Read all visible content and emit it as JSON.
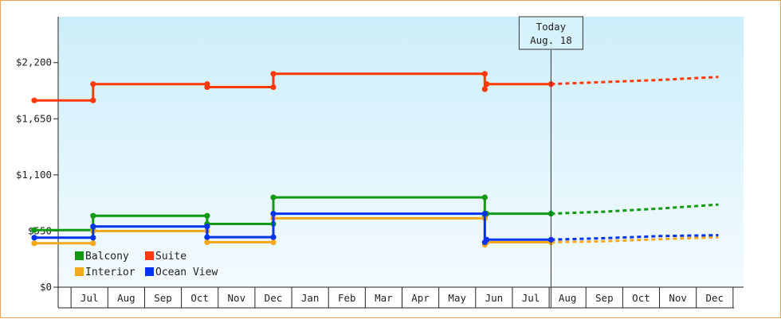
{
  "chart_data": {
    "type": "line",
    "step": true,
    "ylim": [
      0,
      2650
    ],
    "y_ticks": [
      {
        "value": 0,
        "label": "$0"
      },
      {
        "value": 550,
        "label": "$550"
      },
      {
        "value": 1100,
        "label": "$1,100"
      },
      {
        "value": 1650,
        "label": "$1,650"
      },
      {
        "value": 2200,
        "label": "$2,200"
      }
    ],
    "x_range": [
      0,
      18.6
    ],
    "month_labels": [
      "Jul",
      "Aug",
      "Sep",
      "Oct",
      "Nov",
      "Dec",
      "Jan",
      "Feb",
      "Mar",
      "Apr",
      "May",
      "Jun",
      "Jul",
      "Aug",
      "Sep",
      "Oct",
      "Nov",
      "Dec"
    ],
    "today": {
      "x": 14.05,
      "line1": "Today",
      "line2": "Aug. 18"
    },
    "legend": {
      "position": "bottom-left"
    },
    "series": [
      {
        "name": "Balcony",
        "color": "#119911",
        "actual": [
          [
            0,
            560
          ],
          [
            1.6,
            560
          ],
          [
            1.6,
            700
          ],
          [
            4.7,
            700
          ],
          [
            4.7,
            620
          ],
          [
            6.5,
            620
          ],
          [
            6.5,
            880
          ],
          [
            12.25,
            880
          ],
          [
            12.25,
            690
          ],
          [
            12.3,
            720
          ],
          [
            14.05,
            720
          ]
        ],
        "forecast": [
          [
            14.05,
            720
          ],
          [
            15.5,
            740
          ],
          [
            17,
            770
          ],
          [
            18.6,
            810
          ]
        ]
      },
      {
        "name": "Suite",
        "color": "#ff3a0a",
        "actual": [
          [
            0,
            1830
          ],
          [
            1.6,
            1830
          ],
          [
            1.6,
            1990
          ],
          [
            4.7,
            1990
          ],
          [
            4.7,
            1960
          ],
          [
            6.5,
            1960
          ],
          [
            6.5,
            2090
          ],
          [
            12.25,
            2090
          ],
          [
            12.25,
            1940
          ],
          [
            12.3,
            1990
          ],
          [
            14.05,
            1990
          ]
        ],
        "forecast": [
          [
            14.05,
            1990
          ],
          [
            15.5,
            2010
          ],
          [
            17,
            2030
          ],
          [
            18.6,
            2060
          ]
        ]
      },
      {
        "name": "Interior",
        "color": "#f5a81e",
        "actual": [
          [
            0,
            430
          ],
          [
            1.6,
            430
          ],
          [
            1.6,
            550
          ],
          [
            4.7,
            550
          ],
          [
            4.7,
            440
          ],
          [
            6.5,
            440
          ],
          [
            6.5,
            675
          ],
          [
            12.25,
            675
          ],
          [
            12.25,
            415
          ],
          [
            12.3,
            440
          ],
          [
            14.05,
            440
          ]
        ],
        "forecast": [
          [
            14.05,
            440
          ],
          [
            15.5,
            450
          ],
          [
            17,
            470
          ],
          [
            18.6,
            490
          ]
        ]
      },
      {
        "name": "Ocean View",
        "color": "#0033ee",
        "actual": [
          [
            0,
            485
          ],
          [
            1.6,
            485
          ],
          [
            1.6,
            595
          ],
          [
            4.7,
            595
          ],
          [
            4.7,
            490
          ],
          [
            6.5,
            490
          ],
          [
            6.5,
            720
          ],
          [
            12.25,
            720
          ],
          [
            12.25,
            440
          ],
          [
            12.3,
            465
          ],
          [
            14.05,
            465
          ]
        ],
        "forecast": [
          [
            14.05,
            465
          ],
          [
            15.5,
            480
          ],
          [
            17,
            500
          ],
          [
            18.6,
            510
          ]
        ]
      }
    ]
  }
}
